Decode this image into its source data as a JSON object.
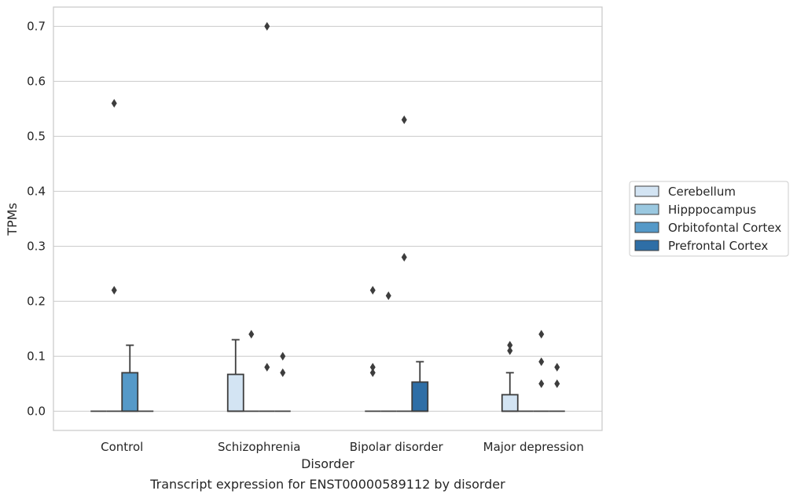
{
  "caption": "Transcript expression for ENST00000589112 by disorder",
  "chart_data": {
    "type": "box",
    "xlabel": "Disorder",
    "ylabel": "TPMs",
    "ylim": [
      -0.035,
      0.735
    ],
    "yticks": [
      "0.0",
      "0.1",
      "0.2",
      "0.3",
      "0.4",
      "0.5",
      "0.6",
      "0.7"
    ],
    "grid": "horizontal",
    "legend_position": "right",
    "categories": [
      "Control",
      "Schizophrenia",
      "Bipolar disorder",
      "Major depression"
    ],
    "series": [
      {
        "name": "Cerebellum",
        "color": "#d3e4f3",
        "boxes": [
          {
            "q1": 0,
            "median": 0,
            "q3": 0,
            "whisker_low": 0,
            "whisker_high": 0,
            "outliers": []
          },
          {
            "q1": 0,
            "median": 0,
            "q3": 0.067,
            "whisker_low": 0,
            "whisker_high": 0.13,
            "outliers": []
          },
          {
            "q1": 0,
            "median": 0,
            "q3": 0,
            "whisker_low": 0,
            "whisker_high": 0,
            "outliers": [
              0.07,
              0.08,
              0.22
            ]
          },
          {
            "q1": 0,
            "median": 0,
            "q3": 0.03,
            "whisker_low": 0,
            "whisker_high": 0.07,
            "outliers": [
              0.11,
              0.12
            ]
          }
        ]
      },
      {
        "name": "Hipppocampus",
        "color": "#9ac8e0",
        "boxes": [
          {
            "q1": 0,
            "median": 0,
            "q3": 0,
            "whisker_low": 0,
            "whisker_high": 0,
            "outliers": [
              0.22,
              0.56
            ]
          },
          {
            "q1": 0,
            "median": 0,
            "q3": 0,
            "whisker_low": 0,
            "whisker_high": 0,
            "outliers": [
              0.14
            ]
          },
          {
            "q1": 0,
            "median": 0,
            "q3": 0,
            "whisker_low": 0,
            "whisker_high": 0,
            "outliers": [
              0.21
            ]
          },
          {
            "q1": 0,
            "median": 0,
            "q3": 0,
            "whisker_low": 0,
            "whisker_high": 0,
            "outliers": []
          }
        ]
      },
      {
        "name": "Orbitofontal Cortex",
        "color": "#5599c8",
        "boxes": [
          {
            "q1": 0,
            "median": 0,
            "q3": 0.07,
            "whisker_low": 0,
            "whisker_high": 0.12,
            "outliers": []
          },
          {
            "q1": 0,
            "median": 0,
            "q3": 0,
            "whisker_low": 0,
            "whisker_high": 0,
            "outliers": [
              0.08,
              0.7
            ]
          },
          {
            "q1": 0,
            "median": 0,
            "q3": 0,
            "whisker_low": 0,
            "whisker_high": 0,
            "outliers": [
              0.28,
              0.53
            ]
          },
          {
            "q1": 0,
            "median": 0,
            "q3": 0,
            "whisker_low": 0,
            "whisker_high": 0,
            "outliers": [
              0.05,
              0.09,
              0.14
            ]
          }
        ]
      },
      {
        "name": "Prefrontal Cortex",
        "color": "#2e6ea6",
        "boxes": [
          {
            "q1": 0,
            "median": 0,
            "q3": 0,
            "whisker_low": 0,
            "whisker_high": 0,
            "outliers": []
          },
          {
            "q1": 0,
            "median": 0,
            "q3": 0,
            "whisker_low": 0,
            "whisker_high": 0,
            "outliers": [
              0.07,
              0.1
            ]
          },
          {
            "q1": 0,
            "median": 0,
            "q3": 0.053,
            "whisker_low": 0,
            "whisker_high": 0.09,
            "outliers": []
          },
          {
            "q1": 0,
            "median": 0,
            "q3": 0,
            "whisker_low": 0,
            "whisker_high": 0,
            "outliers": [
              0.05,
              0.08
            ]
          }
        ]
      }
    ]
  }
}
